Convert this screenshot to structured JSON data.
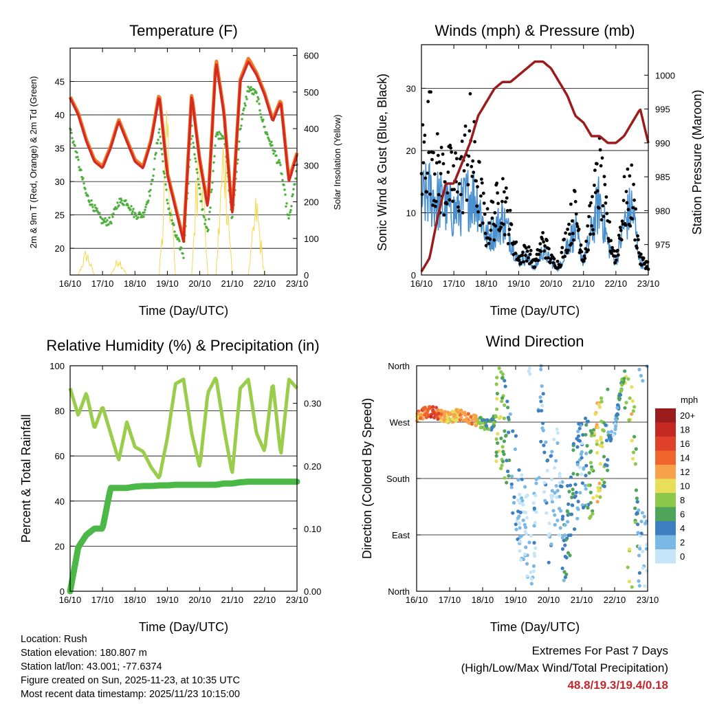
{
  "time_ticks": [
    "16/10",
    "17/10",
    "18/10",
    "19/10",
    "20/10",
    "21/10",
    "22/10",
    "23/10"
  ],
  "charts": {
    "temperature": {
      "title": "Temperature (F)",
      "xlabel": "Time (Day/UTC)",
      "ylabel": "2m & 9m T (Red, Orange) & 2m Td (Green)",
      "y2label": "Solar Insolation (Yellow)",
      "yticks": [
        "20",
        "25",
        "30",
        "35",
        "40",
        "45"
      ],
      "y2ticks": [
        "0",
        "100",
        "200",
        "300",
        "400",
        "500",
        "600"
      ]
    },
    "winds": {
      "title": "Winds (mph) & Pressure (mb)",
      "xlabel": "Time (Day/UTC)",
      "ylabel": "Sonic Wind & Gust (Blue, Black)",
      "y2label": "Station Pressure (Maroon)",
      "yticks": [
        "0",
        "10",
        "20",
        "30"
      ],
      "y2ticks": [
        "975",
        "980",
        "985",
        "990",
        "995",
        "1000"
      ]
    },
    "humidity": {
      "title": "Relative Humidity (%) & Precipitation (in)",
      "xlabel": "Time (Day/UTC)",
      "ylabel": "Percent & Total Rainfall",
      "yticks": [
        "0",
        "20",
        "40",
        "60",
        "80",
        "100"
      ],
      "y2ticks": [
        "0.00",
        "0.10",
        "0.20",
        "0.30"
      ]
    },
    "direction": {
      "title": "Wind Direction",
      "xlabel": "Time (Day/UTC)",
      "ylabel": "Direction (Colored By Speed)",
      "yticks": [
        "North",
        "East",
        "South",
        "West",
        "North"
      ],
      "legend_title": "mph",
      "legend_labels": [
        "20+",
        "18",
        "16",
        "14",
        "12",
        "10",
        "8",
        "6",
        "4",
        "2",
        "0"
      ]
    }
  },
  "colors": {
    "temp_2m": "#d42a22",
    "temp_9m": "#f07a2a",
    "dewpoint": "#4caf3c",
    "solar": "#f2d94e",
    "wind": "#4a90d0",
    "gust": "#000000",
    "pressure": "#9b1c1c",
    "rh": "#9acd4b",
    "rain": "#4cb848",
    "speed_scale": [
      "#9b1c1c",
      "#c42a22",
      "#e0412a",
      "#f0652c",
      "#f7a24a",
      "#e8de5a",
      "#8cc84a",
      "#4ea45a",
      "#3d7fc0",
      "#7ab8e6",
      "#c4e6f8"
    ]
  },
  "chart_data": [
    {
      "type": "line",
      "title": "Temperature (F)",
      "x": [
        0,
        0.25,
        0.5,
        0.75,
        1,
        1.25,
        1.5,
        1.75,
        2,
        2.25,
        2.5,
        2.75,
        3,
        3.25,
        3.5,
        3.75,
        4,
        4.25,
        4.5,
        4.75,
        5,
        5.25,
        5.5,
        5.75,
        6,
        6.25,
        6.5,
        6.75,
        7
      ],
      "x_unit": "days since 16/10 00 UTC",
      "series": [
        {
          "name": "2m T",
          "values": [
            42.5,
            40,
            36,
            33,
            32,
            35,
            39,
            36,
            33,
            32,
            36,
            43,
            31,
            26,
            21,
            43,
            33,
            26,
            48,
            40,
            25,
            45,
            48,
            46,
            43,
            39,
            42,
            30,
            34
          ]
        },
        {
          "name": "9m T",
          "values": [
            42.7,
            40.3,
            36.3,
            33.3,
            32.3,
            35.3,
            39.3,
            36.3,
            33.3,
            32.3,
            36.3,
            43.3,
            31.3,
            26.3,
            21.3,
            43.3,
            33.3,
            26.3,
            48.5,
            40.3,
            25.3,
            45.3,
            48.5,
            46.3,
            43.3,
            39.3,
            42.3,
            30.3,
            34.3
          ]
        },
        {
          "name": "2m Td",
          "values": [
            38,
            33,
            28,
            26,
            24,
            24,
            27,
            27,
            25,
            25,
            29,
            38,
            27,
            22,
            19,
            38,
            28,
            22,
            37,
            37,
            24,
            38,
            44,
            43,
            38,
            35,
            32,
            24,
            32
          ]
        },
        {
          "name": "Solar Insolation",
          "axis": "right",
          "values": [
            0,
            0,
            80,
            0,
            0,
            0,
            60,
            0,
            0,
            0,
            0,
            0,
            500,
            0,
            0,
            0,
            560,
            0,
            0,
            480,
            0,
            0,
            0,
            250,
            0,
            0,
            0,
            0,
            0
          ]
        }
      ],
      "ylim": [
        16,
        50
      ],
      "y2lim": [
        0,
        620
      ]
    },
    {
      "type": "line",
      "title": "Winds (mph) & Pressure (mb)",
      "x": [
        0,
        0.25,
        0.5,
        0.75,
        1,
        1.25,
        1.5,
        1.75,
        2,
        2.25,
        2.5,
        2.75,
        3,
        3.25,
        3.5,
        3.75,
        4,
        4.25,
        4.5,
        4.75,
        5,
        5.25,
        5.5,
        5.75,
        6,
        6.25,
        6.5,
        6.75,
        7
      ],
      "series": [
        {
          "name": "Sonic Wind",
          "values": [
            12,
            13,
            12,
            11,
            10,
            11,
            13,
            12,
            6,
            7,
            9,
            6,
            2,
            3,
            1,
            4,
            2,
            1,
            5,
            7,
            2,
            7,
            12,
            5,
            2,
            8,
            11,
            2,
            1
          ]
        },
        {
          "name": "Gust",
          "values": [
            22,
            28,
            20,
            19,
            18,
            20,
            26,
            18,
            9,
            12,
            16,
            9,
            3,
            5,
            2,
            7,
            3,
            2,
            8,
            13,
            3,
            12,
            20,
            9,
            3,
            14,
            16,
            3,
            2
          ]
        },
        {
          "name": "Station Pressure",
          "axis": "right",
          "values": [
            971,
            973,
            979,
            984,
            984,
            987,
            990,
            994,
            996,
            998,
            999,
            999,
            1000,
            1001,
            1002,
            1002,
            1001,
            999,
            997,
            994,
            993,
            991,
            991,
            990,
            990,
            991,
            993,
            995,
            990
          ]
        }
      ],
      "ylim": [
        0,
        37
      ],
      "y2lim": [
        970.5,
        1004.5
      ]
    },
    {
      "type": "line",
      "title": "Relative Humidity (%) & Precipitation (in)",
      "x": [
        0,
        0.25,
        0.5,
        0.75,
        1,
        1.25,
        1.5,
        1.75,
        2,
        2.25,
        2.5,
        2.75,
        3,
        3.25,
        3.5,
        3.75,
        4,
        4.25,
        4.5,
        4.75,
        5,
        5.25,
        5.5,
        5.75,
        6,
        6.25,
        6.5,
        6.75,
        7
      ],
      "series": [
        {
          "name": "Relative Humidity",
          "values": [
            90,
            78,
            88,
            72,
            82,
            70,
            58,
            75,
            64,
            62,
            55,
            50,
            68,
            92,
            94,
            70,
            55,
            88,
            95,
            72,
            52,
            90,
            94,
            70,
            62,
            93,
            60,
            94,
            90
          ]
        },
        {
          "name": "Total Precipitation",
          "axis": "right",
          "values": [
            0,
            0.07,
            0.09,
            0.1,
            0.1,
            0.165,
            0.165,
            0.165,
            0.167,
            0.168,
            0.168,
            0.169,
            0.169,
            0.17,
            0.17,
            0.17,
            0.17,
            0.17,
            0.17,
            0.172,
            0.172,
            0.174,
            0.175,
            0.175,
            0.175,
            0.175,
            0.175,
            0.175,
            0.175
          ]
        }
      ],
      "ylim": [
        0,
        100
      ],
      "y2lim": [
        0,
        0.36
      ]
    },
    {
      "type": "scatter",
      "title": "Wind Direction",
      "x": [
        0,
        0.25,
        0.5,
        0.75,
        1,
        1.25,
        1.5,
        1.75,
        2,
        2.25,
        2.5,
        2.75,
        3,
        3.25,
        3.5,
        3.75,
        4,
        4.25,
        4.5,
        4.75,
        5,
        5.25,
        5.5,
        5.75,
        6,
        6.25,
        6.5,
        6.75,
        7
      ],
      "series": [
        {
          "name": "Direction (deg)",
          "values": [
            280,
            285,
            287,
            280,
            276,
            282,
            278,
            272,
            268,
            266,
            280,
            250,
            180,
            100,
            40,
            300,
            120,
            200,
            60,
            160,
            210,
            190,
            225,
            240,
            260,
            340,
            350,
            30,
            80
          ]
        },
        {
          "name": "Speed (mph)",
          "values": [
            12,
            14,
            16,
            12,
            10,
            11,
            13,
            12,
            6,
            5,
            9,
            4,
            2,
            1,
            1,
            3,
            2,
            1,
            4,
            5,
            2,
            6,
            11,
            4,
            2,
            7,
            10,
            2,
            1
          ]
        }
      ],
      "ylim": [
        0,
        360
      ],
      "yticks_deg": [
        0,
        90,
        180,
        270,
        360
      ]
    }
  ],
  "info": {
    "location": "Location: Rush",
    "elevation": "Station elevation: 180.807 m",
    "latlon": "Station lat/lon: 43.001; -77.6374",
    "created": "Figure created on Sun, 2025-11-23, at 10:35 UTC",
    "recent": "Most recent data timestamp: 2025/11/23 10:15:00"
  },
  "extremes": {
    "heading": "Extremes For Past 7 Days",
    "sub": "(High/Low/Max Wind/Total Precipitation)",
    "values": "48.8/19.3/19.4/0.18"
  }
}
